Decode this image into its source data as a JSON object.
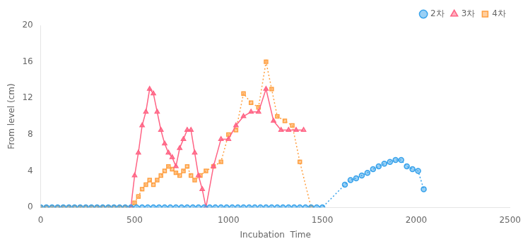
{
  "chart_data": {
    "type": "line",
    "xlabel": "Incubation  Time",
    "ylabel": "From level (cm)",
    "xlim": [
      0,
      2500
    ],
    "ylim": [
      0,
      20
    ],
    "xticks": [
      0,
      500,
      1000,
      1500,
      2000,
      2500
    ],
    "yticks": [
      0,
      4,
      8,
      12,
      16,
      20
    ],
    "grid": false,
    "legend": "upper right",
    "series": [
      {
        "name": "2차",
        "marker": "circle",
        "line_style": "dotted",
        "x": [
          0,
          30,
          60,
          90,
          120,
          150,
          180,
          210,
          240,
          270,
          300,
          330,
          360,
          390,
          420,
          450,
          480,
          510,
          540,
          570,
          600,
          630,
          660,
          690,
          720,
          750,
          780,
          810,
          840,
          870,
          900,
          930,
          960,
          990,
          1020,
          1050,
          1080,
          1110,
          1140,
          1170,
          1200,
          1230,
          1260,
          1290,
          1320,
          1350,
          1380,
          1410,
          1440,
          1470,
          1500,
          1620,
          1650,
          1680,
          1710,
          1740,
          1770,
          1800,
          1830,
          1860,
          1890,
          1920,
          1950,
          1980,
          2010,
          2040
        ],
        "values": [
          0,
          0,
          0,
          0,
          0,
          0,
          0,
          0,
          0,
          0,
          0,
          0,
          0,
          0,
          0,
          0,
          0,
          0,
          0,
          0,
          0,
          0,
          0,
          0,
          0,
          0,
          0,
          0,
          0,
          0,
          0,
          0,
          0,
          0,
          0,
          0,
          0,
          0,
          0,
          0,
          0,
          0,
          0,
          0,
          0,
          0,
          0,
          0,
          0,
          0,
          0,
          2.5,
          3.0,
          3.2,
          3.5,
          3.8,
          4.2,
          4.5,
          4.8,
          5.0,
          5.2,
          5.2,
          4.5,
          4.2,
          4.0,
          2.0
        ]
      },
      {
        "name": "3차",
        "marker": "triangle",
        "line_style": "solid",
        "x": [
          480,
          500,
          520,
          540,
          560,
          580,
          600,
          620,
          640,
          660,
          680,
          700,
          720,
          740,
          760,
          780,
          800,
          820,
          840,
          860,
          880,
          920,
          960,
          1000,
          1040,
          1080,
          1120,
          1160,
          1200,
          1240,
          1280,
          1320,
          1360,
          1400
        ],
        "values": [
          0,
          3.5,
          6.0,
          9.0,
          10.5,
          13.0,
          12.5,
          10.5,
          8.5,
          7.0,
          6.0,
          5.5,
          4.5,
          6.5,
          7.5,
          8.5,
          8.5,
          6.0,
          3.5,
          2.0,
          0,
          4.5,
          7.5,
          7.5,
          9.0,
          10.0,
          10.5,
          10.5,
          13.0,
          9.5,
          8.5,
          8.5,
          8.5,
          8.5
        ]
      },
      {
        "name": "4차",
        "marker": "square",
        "line_style": "dotted",
        "x": [
          0,
          30,
          60,
          90,
          120,
          150,
          180,
          210,
          240,
          270,
          300,
          330,
          360,
          390,
          420,
          450,
          480,
          500,
          520,
          540,
          560,
          580,
          600,
          620,
          640,
          660,
          680,
          700,
          720,
          740,
          760,
          780,
          800,
          820,
          850,
          880,
          920,
          960,
          1000,
          1040,
          1080,
          1120,
          1160,
          1200,
          1230,
          1260,
          1300,
          1340,
          1380,
          1440
        ],
        "values": [
          0,
          0,
          0,
          0,
          0,
          0,
          0,
          0,
          0,
          0,
          0,
          0,
          0,
          0,
          0,
          0,
          0,
          0.5,
          1.2,
          2.0,
          2.5,
          3.0,
          2.5,
          3.0,
          3.5,
          4.0,
          4.5,
          4.2,
          3.8,
          3.5,
          4.0,
          4.5,
          3.5,
          3.0,
          3.5,
          4.0,
          4.5,
          5.0,
          8.0,
          8.5,
          12.5,
          11.5,
          11.0,
          16.0,
          13.0,
          10.0,
          9.5,
          9.0,
          5.0,
          0
        ]
      }
    ]
  }
}
